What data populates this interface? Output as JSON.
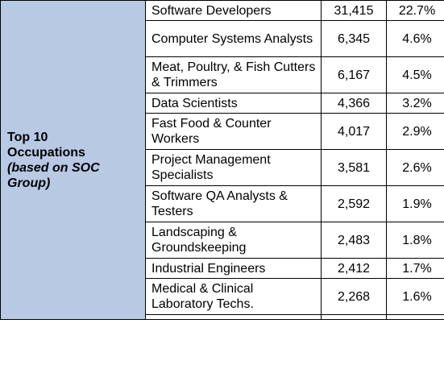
{
  "label": {
    "line1": "Top 10",
    "line2": "Occupations",
    "line3": "(based on SOC Group)"
  },
  "rows": [
    {
      "occupation": "Software Developers",
      "count": "31,415",
      "percent": "22.7%"
    },
    {
      "occupation": "Computer Systems Analysts",
      "count": "6,345",
      "percent": "4.6%"
    },
    {
      "occupation": "Meat, Poultry, & Fish Cutters & Trimmers",
      "count": "6,167",
      "percent": "4.5%"
    },
    {
      "occupation": "Data Scientists",
      "count": "4,366",
      "percent": "3.2%"
    },
    {
      "occupation": "Fast Food & Counter Workers",
      "count": "4,017",
      "percent": "2.9%"
    },
    {
      "occupation": "Project Management Specialists",
      "count": "3,581",
      "percent": "2.6%"
    },
    {
      "occupation": "Software QA Analysts & Testers",
      "count": "2,592",
      "percent": "1.9%"
    },
    {
      "occupation": "Landscaping & Groundskeeping",
      "count": "2,483",
      "percent": "1.8%"
    },
    {
      "occupation": "Industrial Engineers",
      "count": "2,412",
      "percent": "1.7%"
    },
    {
      "occupation": "Medical & Clinical Laboratory Techs.",
      "count": "2,268",
      "percent": "1.6%"
    }
  ],
  "colors": {
    "label_background": "#b7c9e3",
    "border": "#000000"
  }
}
